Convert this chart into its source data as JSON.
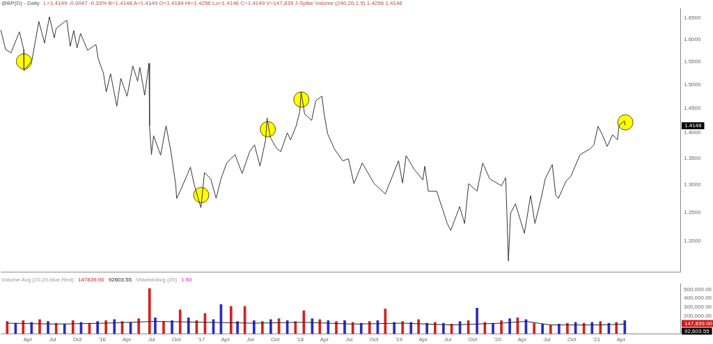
{
  "chart_data": [
    {
      "type": "line",
      "title": "@BP(D) - Daily",
      "annotations": [
        "L=1.4149  -0.0047  -0.33%  B=1.4148  A=1.4149  O=1.4184  Hi=1.4256  Lo=1.4146  C=1.4149  V=147,839  J-Spike Volume (240,20,1.5)  1.4256  1.4146",
        "1.4148"
      ],
      "xlim": [
        "2014-12-22",
        "2021-11-06"
      ],
      "ylim": [
        1.148,
        1.672
      ],
      "log": "y",
      "grid": false,
      "legend": false,
      "tick_labels": "y",
      "yticks": [
        {
          "value": 1.2,
          "label": "1.2000"
        },
        {
          "value": 1.25,
          "label": "1.2500"
        },
        {
          "value": 1.3,
          "label": "1.3000"
        },
        {
          "value": 1.35,
          "label": "1.3500"
        },
        {
          "value": 1.4,
          "label": "1.4000"
        },
        {
          "value": 1.45,
          "label": "1.4500"
        },
        {
          "value": 1.5,
          "label": "1.5000"
        },
        {
          "value": 1.55,
          "label": "1.5500"
        },
        {
          "value": 1.6,
          "label": "1.6000"
        },
        {
          "value": 1.65,
          "label": "1.6500"
        }
      ],
      "series": [
        {
          "type": "scatter",
          "color": "#ffff00",
          "marker": "circle",
          "x": [
            "2015-03-18",
            "2017-01-01",
            "2017-09-04",
            "2018-01-06",
            "2021-04-17"
          ],
          "values": [
            1.55,
            1.281,
            1.407,
            1.468,
            1.421
          ]
        },
        {
          "color": "#333333",
          "marker": "none",
          "line_style": "solid",
          "x": [
            "2014-12-22",
            "2015-01-09",
            "2015-01-29",
            "2015-03-01",
            "2015-03-17",
            "2015-03-18",
            "2015-04-16",
            "2015-05-12",
            "2015-06-02",
            "2015-06-20",
            "2015-07-08",
            "2015-07-15",
            "2015-08-23",
            "2015-09-05",
            "2015-09-18",
            "2015-09-30",
            "2015-10-13",
            "2015-11-08",
            "2015-12-09",
            "2015-12-17",
            "2016-01-06",
            "2016-01-16",
            "2016-02-01",
            "2016-02-24",
            "2016-03-10",
            "2016-04-02",
            "2016-04-23",
            "2016-05-11",
            "2016-05-19",
            "2016-06-06",
            "2016-06-22",
            "2016-06-24",
            "2016-07-01",
            "2016-07-09",
            "2016-08-04",
            "2016-08-24",
            "2016-09-11",
            "2016-09-29",
            "2016-10-02",
            "2016-10-15",
            "2016-11-22",
            "2016-12-05",
            "2016-12-31",
            "2017-01-13",
            "2017-02-05",
            "2017-02-25",
            "2017-03-15",
            "2017-04-05",
            "2017-05-06",
            "2017-06-01",
            "2017-06-29",
            "2017-07-17",
            "2017-08-06",
            "2017-08-27",
            "2017-09-01",
            "2017-09-14",
            "2017-10-07",
            "2017-10-22",
            "2017-11-15",
            "2017-11-27",
            "2017-12-18",
            "2017-12-31",
            "2018-01-05",
            "2018-01-18",
            "2018-02-13",
            "2018-02-28",
            "2018-03-23",
            "2018-03-31",
            "2018-04-13",
            "2018-05-08",
            "2018-06-08",
            "2018-06-29",
            "2018-07-19",
            "2018-08-19",
            "2018-10-02",
            "2018-11-12",
            "2018-12-31",
            "2019-01-15",
            "2019-01-28",
            "2019-02-28",
            "2019-03-31",
            "2019-04-07",
            "2019-04-20",
            "2019-05-21",
            "2019-06-29",
            "2019-07-12",
            "2019-08-14",
            "2019-09-01",
            "2019-09-16",
            "2019-10-17",
            "2019-11-07",
            "2019-12-03",
            "2020-01-15",
            "2020-01-31",
            "2020-02-10",
            "2020-02-18",
            "2020-03-07",
            "2020-04-09",
            "2020-05-02",
            "2020-05-18",
            "2020-06-10",
            "2020-06-25",
            "2020-07-21",
            "2020-08-03",
            "2020-08-13",
            "2020-09-10",
            "2020-09-28",
            "2020-10-06",
            "2020-11-01",
            "2020-12-07",
            "2020-12-22",
            "2021-01-06",
            "2021-01-22",
            "2021-02-09",
            "2021-03-01",
            "2021-03-19",
            "2021-03-25",
            "2021-04-14",
            "2021-04-16"
          ],
          "values": [
            1.622,
            1.577,
            1.569,
            1.617,
            1.577,
            1.53,
            1.551,
            1.641,
            1.591,
            1.652,
            1.603,
            1.625,
            1.644,
            1.584,
            1.62,
            1.58,
            1.613,
            1.575,
            1.588,
            1.557,
            1.523,
            1.484,
            1.523,
            1.454,
            1.513,
            1.475,
            1.54,
            1.507,
            1.537,
            1.477,
            1.546,
            1.414,
            1.357,
            1.394,
            1.356,
            1.414,
            1.363,
            1.299,
            1.275,
            1.288,
            1.333,
            1.302,
            1.258,
            1.323,
            1.311,
            1.275,
            1.311,
            1.341,
            1.357,
            1.321,
            1.363,
            1.376,
            1.335,
            1.386,
            1.43,
            1.39,
            1.369,
            1.363,
            1.4,
            1.386,
            1.414,
            1.443,
            1.484,
            1.438,
            1.425,
            1.465,
            1.475,
            1.438,
            1.398,
            1.368,
            1.345,
            1.349,
            1.302,
            1.341,
            1.302,
            1.283,
            1.345,
            1.303,
            1.355,
            1.328,
            1.309,
            1.335,
            1.288,
            1.288,
            1.23,
            1.218,
            1.26,
            1.23,
            1.302,
            1.288,
            1.341,
            1.311,
            1.298,
            1.313,
            1.166,
            1.248,
            1.265,
            1.213,
            1.28,
            1.23,
            1.275,
            1.311,
            1.338,
            1.281,
            1.275,
            1.307,
            1.316,
            1.326,
            1.357,
            1.368,
            1.376,
            1.413,
            1.396,
            1.373,
            1.396,
            1.386,
            1.415,
            1.424,
            1.415
          ]
        }
      ]
    },
    {
      "type": "bar",
      "annotations": [
        "Volume Avg (20,20,blue,Red)",
        "147839.00",
        "92603.55",
        "Volume/Avg (20)",
        "1.60",
        "147,839.00",
        "92,603.55"
      ],
      "xlim": [
        "2014-12-22",
        "2021-11-06"
      ],
      "ylim": [
        0,
        566000
      ],
      "grid": false,
      "legend": false,
      "xticks": [
        {
          "value": "2015-04-01",
          "label": "Apr"
        },
        {
          "value": "2015-07-01",
          "label": "Jul"
        },
        {
          "value": "2015-10-01",
          "label": "Oct"
        },
        {
          "value": "2016-01-01",
          "label": "'16"
        },
        {
          "value": "2016-04-01",
          "label": "Apr"
        },
        {
          "value": "2016-07-01",
          "label": "Jul"
        },
        {
          "value": "2016-10-01",
          "label": "Oct"
        },
        {
          "value": "2017-01-01",
          "label": "'17"
        },
        {
          "value": "2017-04-01",
          "label": "Apr"
        },
        {
          "value": "2017-07-01",
          "label": "Jul"
        },
        {
          "value": "2017-10-01",
          "label": "Oct"
        },
        {
          "value": "2018-01-01",
          "label": "'18"
        },
        {
          "value": "2018-04-01",
          "label": "Apr"
        },
        {
          "value": "2018-07-01",
          "label": "Jul"
        },
        {
          "value": "2018-10-01",
          "label": "Oct"
        },
        {
          "value": "2019-01-01",
          "label": "'19"
        },
        {
          "value": "2019-04-01",
          "label": "Apr"
        },
        {
          "value": "2019-07-01",
          "label": "Jul"
        },
        {
          "value": "2019-10-01",
          "label": "Oct"
        },
        {
          "value": "2020-01-01",
          "label": "'20"
        },
        {
          "value": "2020-04-01",
          "label": "Apr"
        },
        {
          "value": "2020-07-01",
          "label": "Jul"
        },
        {
          "value": "2020-10-01",
          "label": "Oct"
        },
        {
          "value": "2021-01-01",
          "label": "'21"
        },
        {
          "value": "2021-04-01",
          "label": "Apr"
        }
      ],
      "yticks": [
        {
          "value": 200000,
          "label": "200,000.00"
        },
        {
          "value": 300000,
          "label": "300,000.00"
        },
        {
          "value": 400000,
          "label": "400,000.00"
        },
        {
          "value": 500000,
          "label": "500,000.00"
        }
      ],
      "series": [
        {
          "x": [
            "2015-01-15",
            "2015-02-15",
            "2015-03-15",
            "2015-04-15",
            "2015-05-15",
            "2015-06-15",
            "2015-07-15",
            "2015-08-15",
            "2015-09-15",
            "2015-10-15",
            "2015-11-15",
            "2015-12-15",
            "2016-01-15",
            "2016-02-15",
            "2016-03-15",
            "2016-04-15",
            "2016-05-15",
            "2016-06-24",
            "2016-07-15",
            "2016-08-15",
            "2016-09-15",
            "2016-10-15",
            "2016-11-15",
            "2016-12-15",
            "2017-01-15",
            "2017-02-15",
            "2017-03-15",
            "2017-04-21",
            "2017-05-15",
            "2017-06-11",
            "2017-07-15",
            "2017-08-15",
            "2017-09-15",
            "2017-10-15",
            "2017-11-15",
            "2017-12-15",
            "2018-01-15",
            "2018-02-15",
            "2018-03-15",
            "2018-04-15",
            "2018-05-15",
            "2018-06-15",
            "2018-07-15",
            "2018-08-15",
            "2018-09-15",
            "2018-10-15",
            "2018-11-12",
            "2018-12-15",
            "2019-01-15",
            "2019-02-15",
            "2019-03-15",
            "2019-04-15",
            "2019-05-15",
            "2019-06-15",
            "2019-07-15",
            "2019-08-15",
            "2019-09-15",
            "2019-10-17",
            "2019-11-15",
            "2019-12-15",
            "2020-01-15",
            "2020-02-15",
            "2020-03-15",
            "2020-04-15",
            "2020-05-15",
            "2020-06-15",
            "2020-07-15",
            "2020-08-15",
            "2020-09-15",
            "2020-10-15",
            "2020-11-15",
            "2020-12-15",
            "2021-01-15",
            "2021-02-15",
            "2021-03-15",
            "2021-04-15"
          ],
          "values": [
            140000,
            120000,
            150000,
            130000,
            160000,
            140000,
            120000,
            110000,
            150000,
            130000,
            120000,
            140000,
            150000,
            160000,
            140000,
            130000,
            170000,
            510000,
            180000,
            140000,
            150000,
            270000,
            180000,
            150000,
            230000,
            160000,
            330000,
            310000,
            140000,
            310000,
            150000,
            140000,
            160000,
            170000,
            150000,
            140000,
            260000,
            170000,
            160000,
            150000,
            140000,
            150000,
            130000,
            120000,
            140000,
            150000,
            280000,
            130000,
            140000,
            130000,
            160000,
            120000,
            130000,
            120000,
            110000,
            140000,
            150000,
            290000,
            130000,
            120000,
            150000,
            170000,
            180000,
            160000,
            120000,
            110000,
            100000,
            110000,
            120000,
            130000,
            120000,
            130000,
            140000,
            120000,
            130000,
            150000
          ],
          "colors": [
            "#d42020",
            "#2a2ac8",
            "#d42020",
            "#2a2ac8",
            "#d42020",
            "#2a2ac8",
            "#d42020",
            "#2a2ac8",
            "#d42020",
            "#2a2ac8",
            "#d42020",
            "#2a2ac8",
            "#d42020",
            "#2a2ac8",
            "#d42020",
            "#2a2ac8",
            "#d42020",
            "#d42020",
            "#2a2ac8",
            "#d42020",
            "#2a2ac8",
            "#d42020",
            "#2a2ac8",
            "#d42020",
            "#d42020",
            "#2a2ac8",
            "#2a2ac8",
            "#d42020",
            "#2a2ac8",
            "#d42020",
            "#2a2ac8",
            "#d42020",
            "#2a2ac8",
            "#d42020",
            "#2a2ac8",
            "#d42020",
            "#d42020",
            "#2a2ac8",
            "#d42020",
            "#2a2ac8",
            "#d42020",
            "#2a2ac8",
            "#d42020",
            "#2a2ac8",
            "#d42020",
            "#2a2ac8",
            "#d42020",
            "#2a2ac8",
            "#d42020",
            "#2a2ac8",
            "#d42020",
            "#2a2ac8",
            "#d42020",
            "#2a2ac8",
            "#d42020",
            "#2a2ac8",
            "#d42020",
            "#2a2ac8",
            "#d42020",
            "#2a2ac8",
            "#d42020",
            "#2a2ac8",
            "#d42020",
            "#2a2ac8",
            "#d42020",
            "#2a2ac8",
            "#d42020",
            "#2a2ac8",
            "#d42020",
            "#2a2ac8",
            "#d42020",
            "#2a2ac8",
            "#d42020",
            "#2a2ac8",
            "#d42020",
            "#2a2ac8"
          ]
        },
        {
          "type": "line",
          "color": "#222222",
          "marker": "none",
          "x": [
            "2015-01-15",
            "2015-07-15",
            "2016-01-15",
            "2016-07-15",
            "2017-01-15",
            "2017-07-15",
            "2018-01-15",
            "2018-07-15",
            "2019-01-15",
            "2019-07-15",
            "2020-01-15",
            "2020-04-15",
            "2020-07-15",
            "2021-01-15",
            "2021-04-15"
          ],
          "values": [
            120000,
            110000,
            120000,
            140000,
            130000,
            120000,
            130000,
            110000,
            120000,
            100000,
            120000,
            140000,
            100000,
            100000,
            110000
          ]
        }
      ]
    }
  ]
}
